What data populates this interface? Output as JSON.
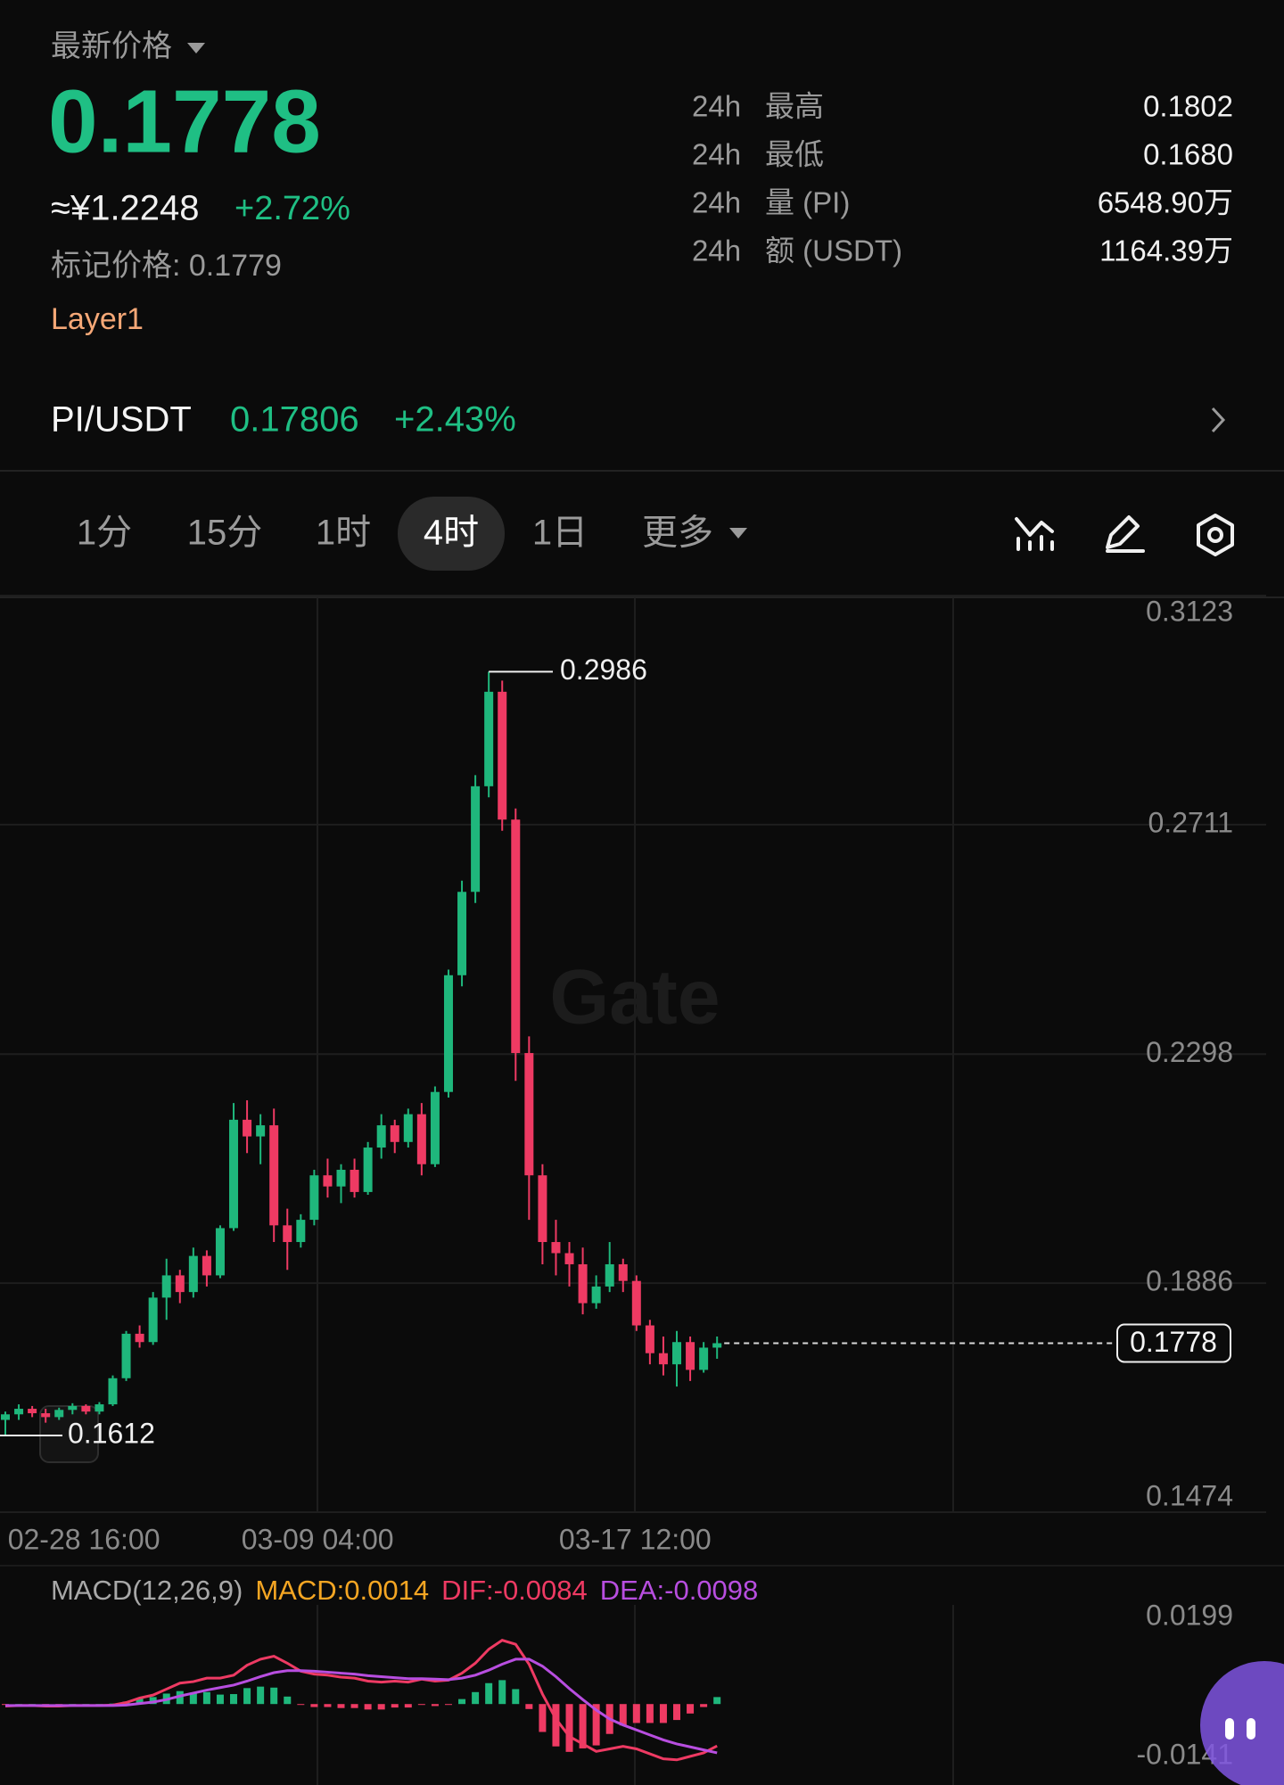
{
  "header": {
    "price_label": "最新价格",
    "last_price": "0.1778",
    "cny_price": "≈¥1.2248",
    "change": "+2.72%",
    "mark_price": "标记价格: 0.1779",
    "tag": "Layer1"
  },
  "stats": [
    {
      "period": "24h",
      "label": "最高",
      "value": "0.1802"
    },
    {
      "period": "24h",
      "label": "最低",
      "value": "0.1680"
    },
    {
      "period": "24h",
      "label": "量 (PI)",
      "value": "6548.90万"
    },
    {
      "period": "24h",
      "label": "额 (USDT)",
      "value": "1164.39万"
    }
  ],
  "pair": {
    "name": "PI/USDT",
    "price": "0.17806",
    "change": "+2.43%"
  },
  "tabs": {
    "items": [
      "1分",
      "15分",
      "1时",
      "4时",
      "1日",
      "更多"
    ],
    "active": 3
  },
  "watermark": "Gate",
  "chart_data": [
    {
      "type": "candlestick",
      "up_color": "#1fb77c",
      "down_color": "#ee3a63",
      "open": [
        0.164,
        0.165,
        0.166,
        0.1652,
        0.1645,
        0.1658,
        0.1665,
        0.1655,
        0.1668,
        0.1715,
        0.1795,
        0.178,
        0.186,
        0.19,
        0.187,
        0.1935,
        0.19,
        0.1985,
        0.218,
        0.215,
        0.217,
        0.199,
        0.196,
        0.2,
        0.208,
        0.206,
        0.209,
        0.205,
        0.213,
        0.217,
        0.214,
        0.219,
        0.21,
        0.223,
        0.244,
        0.259,
        0.278,
        0.295,
        0.272,
        0.23,
        0.208,
        0.196,
        0.194,
        0.192,
        0.185,
        0.188,
        0.192,
        0.189,
        0.181,
        0.176,
        0.174,
        0.178,
        0.173,
        0.177
      ],
      "high": [
        0.1655,
        0.1668,
        0.1665,
        0.166,
        0.1662,
        0.167,
        0.1668,
        0.1672,
        0.172,
        0.18,
        0.181,
        0.187,
        0.193,
        0.191,
        0.195,
        0.1945,
        0.199,
        0.221,
        0.2215,
        0.219,
        0.22,
        0.202,
        0.201,
        0.209,
        0.211,
        0.21,
        0.211,
        0.214,
        0.219,
        0.218,
        0.22,
        0.221,
        0.224,
        0.245,
        0.261,
        0.28,
        0.2986,
        0.297,
        0.274,
        0.233,
        0.21,
        0.2,
        0.196,
        0.195,
        0.19,
        0.196,
        0.193,
        0.19,
        0.182,
        0.179,
        0.18,
        0.179,
        0.178,
        0.179
      ],
      "low": [
        0.1612,
        0.164,
        0.1645,
        0.1635,
        0.164,
        0.165,
        0.165,
        0.165,
        0.1665,
        0.171,
        0.177,
        0.1775,
        0.182,
        0.185,
        0.186,
        0.188,
        0.1895,
        0.198,
        0.212,
        0.21,
        0.196,
        0.191,
        0.195,
        0.199,
        0.204,
        0.203,
        0.204,
        0.2045,
        0.211,
        0.212,
        0.213,
        0.208,
        0.2095,
        0.222,
        0.242,
        0.257,
        0.276,
        0.27,
        0.225,
        0.2,
        0.192,
        0.19,
        0.188,
        0.183,
        0.184,
        0.187,
        0.187,
        0.18,
        0.174,
        0.172,
        0.17,
        0.171,
        0.1725,
        0.175
      ],
      "close": [
        0.165,
        0.166,
        0.1652,
        0.1645,
        0.1658,
        0.1665,
        0.1655,
        0.1668,
        0.1715,
        0.1795,
        0.178,
        0.186,
        0.19,
        0.187,
        0.1935,
        0.19,
        0.1985,
        0.218,
        0.215,
        0.217,
        0.199,
        0.196,
        0.2,
        0.208,
        0.206,
        0.209,
        0.205,
        0.213,
        0.217,
        0.214,
        0.219,
        0.21,
        0.223,
        0.244,
        0.259,
        0.278,
        0.295,
        0.272,
        0.23,
        0.208,
        0.196,
        0.194,
        0.192,
        0.185,
        0.188,
        0.192,
        0.189,
        0.181,
        0.176,
        0.174,
        0.178,
        0.173,
        0.177,
        0.1778
      ],
      "ylim": [
        0.1474,
        0.3123
      ],
      "yticks": [
        0.3123,
        0.2711,
        0.2298,
        0.1886,
        0.1474
      ],
      "xticks": [
        {
          "value": 5.85,
          "label": "02-28 16:00"
        },
        {
          "value": 23.25,
          "label": "03-09 04:00"
        },
        {
          "value": 46.9,
          "label": "03-17 12:00"
        }
      ],
      "grid": true
    },
    {
      "type": "macd",
      "legend": [
        {
          "text": "MACD(12,26,9)",
          "color": "#a8a8a8"
        },
        {
          "text": "MACD:0.0014",
          "color": "#f5a623"
        },
        {
          "text": "DIF:-0.0084",
          "color": "#ee3a63"
        },
        {
          "text": "DEA:-0.0098",
          "color": "#b84ee0"
        }
      ],
      "series": [
        {
          "name": "DIF",
          "color": "#ee3a63",
          "values": [
            -0.0004,
            -0.0003,
            -0.0003,
            -0.0004,
            -0.0004,
            -0.0003,
            -0.0003,
            -0.0003,
            -0.0002,
            0.0003,
            0.0012,
            0.0018,
            0.003,
            0.0042,
            0.0045,
            0.0052,
            0.0052,
            0.0058,
            0.0078,
            0.009,
            0.0096,
            0.0082,
            0.0066,
            0.006,
            0.0058,
            0.0054,
            0.0052,
            0.0046,
            0.0044,
            0.0046,
            0.0044,
            0.005,
            0.0046,
            0.0048,
            0.0062,
            0.0082,
            0.011,
            0.0128,
            0.012,
            0.008,
            0.002,
            -0.003,
            -0.0065,
            -0.008,
            -0.0095,
            -0.009,
            -0.0085,
            -0.009,
            -0.01,
            -0.011,
            -0.0112,
            -0.0105,
            -0.0098,
            -0.0084
          ]
        },
        {
          "name": "DEA",
          "color": "#b84ee0",
          "values": [
            -0.0003,
            -0.0003,
            -0.0003,
            -0.0003,
            -0.0003,
            -0.0003,
            -0.0003,
            -0.0003,
            -0.0003,
            -0.0002,
            0.0001,
            0.0004,
            0.0009,
            0.0016,
            0.0022,
            0.0028,
            0.0033,
            0.0038,
            0.0046,
            0.0055,
            0.0063,
            0.0067,
            0.0067,
            0.0066,
            0.0064,
            0.0062,
            0.006,
            0.0057,
            0.0055,
            0.0053,
            0.0051,
            0.0051,
            0.005,
            0.0049,
            0.0052,
            0.0058,
            0.0068,
            0.008,
            0.009,
            0.009,
            0.0076,
            0.0055,
            0.0031,
            0.0009,
            -0.0012,
            -0.003,
            -0.0042,
            -0.0052,
            -0.0062,
            -0.0072,
            -0.008,
            -0.0086,
            -0.0092,
            -0.0098
          ]
        },
        {
          "name": "MACD",
          "values": [
            -0.0001,
            0,
            0,
            -0.0001,
            -0.0001,
            0,
            0,
            0,
            0.0001,
            0.0005,
            0.0011,
            0.0014,
            0.0021,
            0.0026,
            0.0023,
            0.0024,
            0.0019,
            0.002,
            0.0032,
            0.0035,
            0.0033,
            0.0015,
            -0.0001,
            -0.0006,
            -0.0006,
            -0.0008,
            -0.0008,
            -0.0011,
            -0.0011,
            -0.0007,
            -0.0007,
            -0.0001,
            -0.0004,
            -0.0001,
            0.001,
            0.0024,
            0.0042,
            0.0048,
            0.003,
            -0.001,
            -0.0056,
            -0.0085,
            -0.0096,
            -0.0089,
            -0.0083,
            -0.006,
            -0.0043,
            -0.0038,
            -0.0038,
            -0.0038,
            -0.0032,
            -0.0019,
            -0.0006,
            0.0014
          ]
        }
      ],
      "ylim": [
        -0.0141,
        0.0199
      ],
      "yticks": [
        0.0199,
        -0.0141
      ]
    }
  ]
}
